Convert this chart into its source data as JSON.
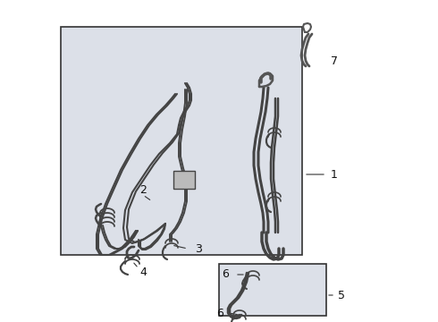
{
  "bg_color": "#ffffff",
  "box1_bg": "#dce0e8",
  "box2_bg": "#dce0e8",
  "line_color": "#444444",
  "line_color2": "#666666"
}
